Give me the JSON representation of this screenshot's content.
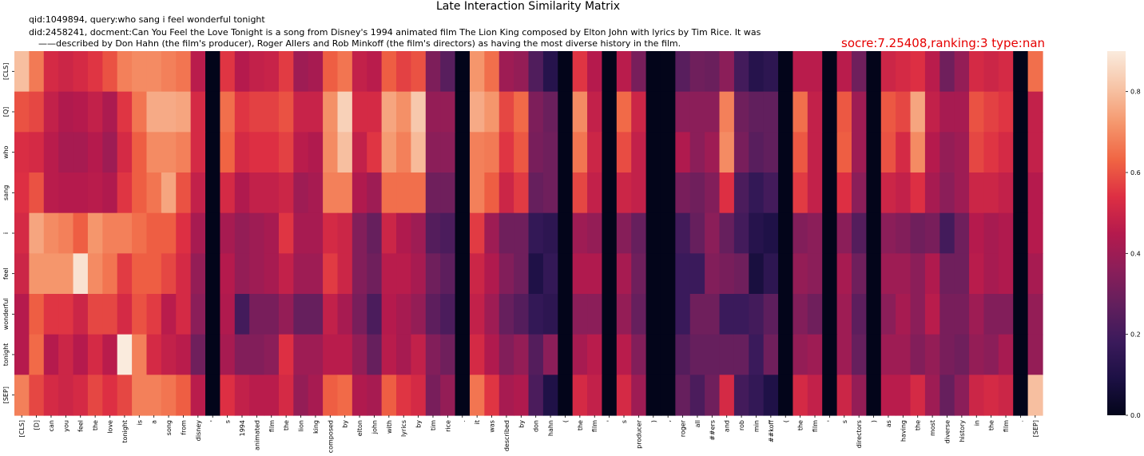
{
  "info": {
    "qid_line": "qid:1049894, query:who sang i feel wonderful tonight",
    "did_line": "did:2458241, docment:Can You Feel the Love Tonight  is a song from Disney's 1994 animated film The Lion King composed by Elton John with lyrics by Tim Rice. It was",
    "did_line2": "——described by Don Hahn (the film's producer), Roger Allers and Rob Minkoff (the film's directors) as having the most diverse history in the film.",
    "score_text": "socre:7.25408,ranking:3 type:nan"
  },
  "chart_data": {
    "type": "heatmap",
    "title": "Late Interaction Similarity Matrix",
    "xlabel": "",
    "ylabel": "",
    "rows": [
      "[CLS]",
      "[Q]",
      "who",
      "sang",
      "i",
      "feel",
      "wonderful",
      "tonight",
      "[SEP]"
    ],
    "columns": [
      "[CLS]",
      "[D]",
      "can",
      "you",
      "feel",
      "the",
      "love",
      "tonight",
      "is",
      "a",
      "song",
      "from",
      "disney",
      "'",
      "s",
      "1994",
      "animated",
      "film",
      "the",
      "lion",
      "king",
      "composed",
      "by",
      "elton",
      "john",
      "with",
      "lyrics",
      "by",
      "tim",
      "rice",
      ".",
      "it",
      "was",
      "described",
      "by",
      "don",
      "hahn",
      "(",
      "the",
      "film",
      "'",
      "s",
      "producer",
      ")",
      ",",
      "roger",
      "all",
      "##ers",
      "and",
      "rob",
      "min",
      "##koff",
      "(",
      "the",
      "film",
      "'",
      "s",
      "directors",
      ")",
      "as",
      "having",
      "the",
      "most",
      "diverse",
      "history",
      "in",
      "the",
      "film",
      ".",
      "[SEP]"
    ],
    "values": [
      [
        0.8,
        0.67,
        0.52,
        0.5,
        0.52,
        0.55,
        0.6,
        0.68,
        0.7,
        0.7,
        0.68,
        0.66,
        0.46,
        0.0,
        0.55,
        0.45,
        0.48,
        0.49,
        0.56,
        0.4,
        0.42,
        0.62,
        0.66,
        0.48,
        0.46,
        0.62,
        0.57,
        0.6,
        0.33,
        0.25,
        0.0,
        0.72,
        0.65,
        0.4,
        0.38,
        0.23,
        0.12,
        0.0,
        0.55,
        0.45,
        0.0,
        0.46,
        0.32,
        0.0,
        0.0,
        0.25,
        0.3,
        0.29,
        0.36,
        0.2,
        0.12,
        0.14,
        0.0,
        0.46,
        0.46,
        0.0,
        0.46,
        0.3,
        0.0,
        0.5,
        0.52,
        0.54,
        0.46,
        0.3,
        0.38,
        0.52,
        0.5,
        0.52,
        0.0,
        0.65
      ],
      [
        0.6,
        0.58,
        0.48,
        0.44,
        0.45,
        0.48,
        0.43,
        0.55,
        0.66,
        0.76,
        0.76,
        0.75,
        0.52,
        0.0,
        0.65,
        0.55,
        0.57,
        0.57,
        0.6,
        0.49,
        0.49,
        0.71,
        0.84,
        0.52,
        0.52,
        0.75,
        0.71,
        0.82,
        0.38,
        0.38,
        0.0,
        0.76,
        0.72,
        0.58,
        0.64,
        0.33,
        0.29,
        0.0,
        0.7,
        0.48,
        0.0,
        0.64,
        0.5,
        0.0,
        0.0,
        0.36,
        0.36,
        0.36,
        0.68,
        0.3,
        0.27,
        0.27,
        0.0,
        0.65,
        0.48,
        0.0,
        0.61,
        0.4,
        0.0,
        0.61,
        0.58,
        0.75,
        0.48,
        0.42,
        0.42,
        0.6,
        0.57,
        0.55,
        0.0,
        0.48
      ],
      [
        0.53,
        0.52,
        0.46,
        0.42,
        0.42,
        0.45,
        0.4,
        0.52,
        0.62,
        0.7,
        0.7,
        0.68,
        0.52,
        0.0,
        0.63,
        0.52,
        0.54,
        0.54,
        0.57,
        0.46,
        0.44,
        0.7,
        0.8,
        0.48,
        0.55,
        0.73,
        0.68,
        0.79,
        0.36,
        0.36,
        0.0,
        0.68,
        0.67,
        0.55,
        0.61,
        0.32,
        0.3,
        0.0,
        0.66,
        0.5,
        0.0,
        0.59,
        0.48,
        0.0,
        0.0,
        0.44,
        0.36,
        0.4,
        0.7,
        0.32,
        0.25,
        0.27,
        0.0,
        0.61,
        0.48,
        0.0,
        0.62,
        0.4,
        0.0,
        0.6,
        0.52,
        0.7,
        0.45,
        0.38,
        0.4,
        0.58,
        0.55,
        0.52,
        0.0,
        0.48
      ],
      [
        0.54,
        0.6,
        0.46,
        0.45,
        0.45,
        0.46,
        0.44,
        0.55,
        0.62,
        0.66,
        0.75,
        0.6,
        0.48,
        0.0,
        0.52,
        0.44,
        0.48,
        0.48,
        0.5,
        0.4,
        0.42,
        0.68,
        0.68,
        0.44,
        0.4,
        0.65,
        0.65,
        0.65,
        0.3,
        0.3,
        0.0,
        0.68,
        0.62,
        0.5,
        0.56,
        0.28,
        0.3,
        0.0,
        0.58,
        0.48,
        0.0,
        0.5,
        0.48,
        0.0,
        0.0,
        0.32,
        0.3,
        0.34,
        0.54,
        0.22,
        0.16,
        0.2,
        0.0,
        0.56,
        0.48,
        0.0,
        0.54,
        0.36,
        0.0,
        0.5,
        0.48,
        0.54,
        0.42,
        0.36,
        0.4,
        0.5,
        0.5,
        0.48,
        0.0,
        0.45
      ],
      [
        0.52,
        0.75,
        0.7,
        0.68,
        0.62,
        0.72,
        0.68,
        0.68,
        0.65,
        0.62,
        0.62,
        0.54,
        0.42,
        0.0,
        0.42,
        0.38,
        0.4,
        0.42,
        0.55,
        0.42,
        0.42,
        0.52,
        0.5,
        0.34,
        0.28,
        0.5,
        0.44,
        0.4,
        0.24,
        0.22,
        0.0,
        0.56,
        0.4,
        0.3,
        0.3,
        0.16,
        0.14,
        0.0,
        0.4,
        0.38,
        0.0,
        0.35,
        0.28,
        0.0,
        0.0,
        0.2,
        0.28,
        0.36,
        0.28,
        0.2,
        0.12,
        0.1,
        0.0,
        0.34,
        0.36,
        0.0,
        0.36,
        0.24,
        0.0,
        0.36,
        0.34,
        0.3,
        0.32,
        0.2,
        0.3,
        0.45,
        0.42,
        0.44,
        0.0,
        0.45
      ],
      [
        0.5,
        0.72,
        0.72,
        0.72,
        0.88,
        0.7,
        0.66,
        0.56,
        0.62,
        0.62,
        0.58,
        0.52,
        0.38,
        0.0,
        0.45,
        0.38,
        0.4,
        0.42,
        0.48,
        0.4,
        0.4,
        0.56,
        0.5,
        0.34,
        0.3,
        0.46,
        0.46,
        0.42,
        0.3,
        0.26,
        0.0,
        0.5,
        0.44,
        0.34,
        0.3,
        0.1,
        0.16,
        0.0,
        0.44,
        0.44,
        0.0,
        0.42,
        0.3,
        0.0,
        0.0,
        0.18,
        0.18,
        0.34,
        0.32,
        0.3,
        0.08,
        0.14,
        0.0,
        0.38,
        0.36,
        0.0,
        0.42,
        0.3,
        0.0,
        0.4,
        0.4,
        0.36,
        0.44,
        0.3,
        0.3,
        0.46,
        0.42,
        0.44,
        0.0,
        0.42
      ],
      [
        0.45,
        0.62,
        0.55,
        0.55,
        0.5,
        0.58,
        0.58,
        0.52,
        0.6,
        0.56,
        0.46,
        0.52,
        0.36,
        0.0,
        0.44,
        0.2,
        0.32,
        0.32,
        0.38,
        0.28,
        0.28,
        0.48,
        0.42,
        0.32,
        0.22,
        0.45,
        0.42,
        0.38,
        0.26,
        0.22,
        0.0,
        0.48,
        0.4,
        0.28,
        0.24,
        0.16,
        0.14,
        0.0,
        0.36,
        0.36,
        0.0,
        0.38,
        0.28,
        0.0,
        0.0,
        0.18,
        0.3,
        0.3,
        0.18,
        0.18,
        0.2,
        0.26,
        0.0,
        0.34,
        0.3,
        0.0,
        0.4,
        0.26,
        0.0,
        0.36,
        0.42,
        0.36,
        0.46,
        0.32,
        0.32,
        0.4,
        0.34,
        0.34,
        0.0,
        0.38
      ],
      [
        0.45,
        0.64,
        0.45,
        0.5,
        0.45,
        0.52,
        0.46,
        0.93,
        0.68,
        0.52,
        0.48,
        0.46,
        0.3,
        0.0,
        0.42,
        0.34,
        0.34,
        0.36,
        0.54,
        0.4,
        0.4,
        0.46,
        0.46,
        0.38,
        0.28,
        0.46,
        0.42,
        0.48,
        0.34,
        0.3,
        0.0,
        0.52,
        0.44,
        0.34,
        0.38,
        0.24,
        0.36,
        0.0,
        0.42,
        0.46,
        0.0,
        0.46,
        0.34,
        0.0,
        0.0,
        0.24,
        0.28,
        0.28,
        0.28,
        0.28,
        0.18,
        0.3,
        0.0,
        0.38,
        0.4,
        0.0,
        0.4,
        0.28,
        0.0,
        0.4,
        0.4,
        0.34,
        0.38,
        0.32,
        0.3,
        0.38,
        0.36,
        0.42,
        0.0,
        0.38
      ],
      [
        0.68,
        0.58,
        0.52,
        0.5,
        0.52,
        0.58,
        0.54,
        0.58,
        0.68,
        0.68,
        0.66,
        0.62,
        0.46,
        0.0,
        0.54,
        0.48,
        0.46,
        0.46,
        0.52,
        0.38,
        0.42,
        0.62,
        0.64,
        0.44,
        0.42,
        0.62,
        0.55,
        0.52,
        0.32,
        0.38,
        0.0,
        0.66,
        0.55,
        0.42,
        0.44,
        0.22,
        0.1,
        0.0,
        0.52,
        0.48,
        0.0,
        0.52,
        0.4,
        0.0,
        0.0,
        0.28,
        0.22,
        0.3,
        0.52,
        0.2,
        0.16,
        0.1,
        0.0,
        0.52,
        0.48,
        0.0,
        0.5,
        0.38,
        0.0,
        0.46,
        0.46,
        0.52,
        0.4,
        0.28,
        0.36,
        0.5,
        0.52,
        0.5,
        0.0,
        0.8
      ]
    ],
    "colorbar": {
      "range": [
        0.0,
        0.9
      ],
      "ticks": [
        "0.0",
        "0.2",
        "0.4",
        "0.6",
        "0.8"
      ],
      "colormap": "rocket"
    }
  }
}
